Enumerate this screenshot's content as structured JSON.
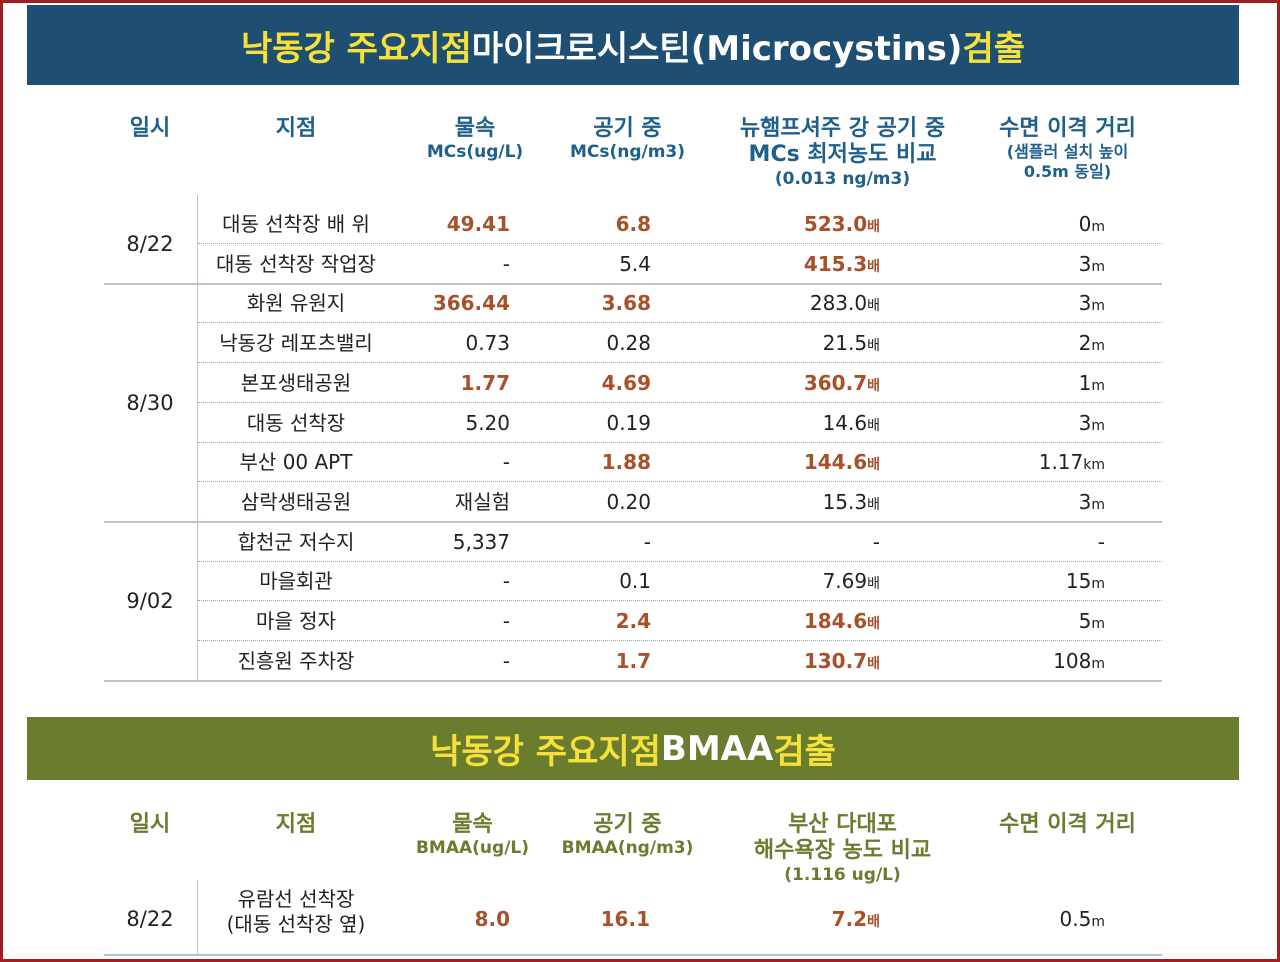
{
  "mc_section": {
    "title_a": "낙동강 주요지점 ",
    "title_b": "마이크로시스틴(Microcystins) ",
    "title_c": "검출",
    "headers": {
      "date": "일시",
      "site": "지점",
      "water_1": "물속",
      "water_2": "MCs(ug/L)",
      "air_1": "공기 중",
      "air_2": "MCs(ng/m3)",
      "cmp_1": "뉴햄프셔주 강 공기 중",
      "cmp_2": "MCs 최저농도 비교",
      "cmp_3": "(0.013 ng/m3)",
      "dist_1": "수면 이격 거리",
      "dist_2": "(샘플러 설치 높이",
      "dist_3": "0.5m 동일)"
    },
    "groups": [
      {
        "date": "8/22"
      },
      {
        "date": "8/30"
      },
      {
        "date": "9/02"
      }
    ],
    "rows": [
      {
        "site": "대동 선착장 배 위",
        "water": "49.41",
        "air": "6.8",
        "ratio": "523.0",
        "ratio_unit": "배",
        "dist": "0",
        "dist_unit": "m"
      },
      {
        "site": "대동 선착장 작업장",
        "water": "-",
        "air": "5.4",
        "ratio": "415.3",
        "ratio_unit": "배",
        "dist": "3",
        "dist_unit": "m"
      },
      {
        "site": "화원 유원지",
        "water": "366.44",
        "air": "3.68",
        "ratio": "283.0",
        "ratio_unit": "배",
        "dist": "3",
        "dist_unit": "m"
      },
      {
        "site": "낙동강 레포츠밸리",
        "water": "0.73",
        "air": "0.28",
        "ratio": "21.5",
        "ratio_unit": "배",
        "dist": "2",
        "dist_unit": "m"
      },
      {
        "site": "본포생태공원",
        "water": "1.77",
        "air": "4.69",
        "ratio": "360.7",
        "ratio_unit": "배",
        "dist": "1",
        "dist_unit": "m"
      },
      {
        "site": "대동 선착장",
        "water": "5.20",
        "air": "0.19",
        "ratio": "14.6",
        "ratio_unit": "배",
        "dist": "3",
        "dist_unit": "m"
      },
      {
        "site": "부산 00 APT",
        "water": "-",
        "air": "1.88",
        "ratio": "144.6",
        "ratio_unit": "배",
        "dist": "1.17",
        "dist_unit": "km"
      },
      {
        "site": "삼락생태공원",
        "water": "재실험",
        "air": "0.20",
        "ratio": "15.3",
        "ratio_unit": "배",
        "dist": "3",
        "dist_unit": "m"
      },
      {
        "site": "합천군 저수지",
        "water": "5,337",
        "air": "-",
        "ratio": "-",
        "ratio_unit": "",
        "dist": "-",
        "dist_unit": ""
      },
      {
        "site": "마을회관",
        "water": "-",
        "air": "0.1",
        "ratio": "7.69",
        "ratio_unit": "배",
        "dist": "15",
        "dist_unit": "m"
      },
      {
        "site": "마을 정자",
        "water": "-",
        "air": "2.4",
        "ratio": "184.6",
        "ratio_unit": "배",
        "dist": "5",
        "dist_unit": "m"
      },
      {
        "site": "진흥원 주차장",
        "water": "-",
        "air": "1.7",
        "ratio": "130.7",
        "ratio_unit": "배",
        "dist": "108",
        "dist_unit": "m"
      }
    ]
  },
  "bmaa_section": {
    "title_a": "낙동강 주요지점 ",
    "title_b": "BMAA ",
    "title_c": "검출",
    "headers": {
      "date": "일시",
      "site": "지점",
      "water_1": "물속",
      "water_2": "BMAA(ug/L)",
      "air_1": "공기 중",
      "air_2": "BMAA(ng/m3)",
      "cmp_1": "부산 다대포",
      "cmp_2": "해수욕장 농도 비교",
      "cmp_3": "(1.116 ug/L)",
      "dist_1": "수면 이격 거리"
    },
    "row": {
      "date": "8/22",
      "site_1": "유람선 선착장",
      "site_2": "(대동 선착장 옆)",
      "water": "8.0",
      "air": "16.1",
      "ratio": "7.2",
      "ratio_unit": "배",
      "dist": "0.5",
      "dist_unit": "m"
    }
  },
  "colors": {
    "border": "#a01d24",
    "banner_blue": "#1e4f73",
    "banner_green": "#6a7c2e",
    "title_yellow": "#f6e13a",
    "header_blue": "#1e5f8c",
    "highlight": "#a8502a"
  }
}
